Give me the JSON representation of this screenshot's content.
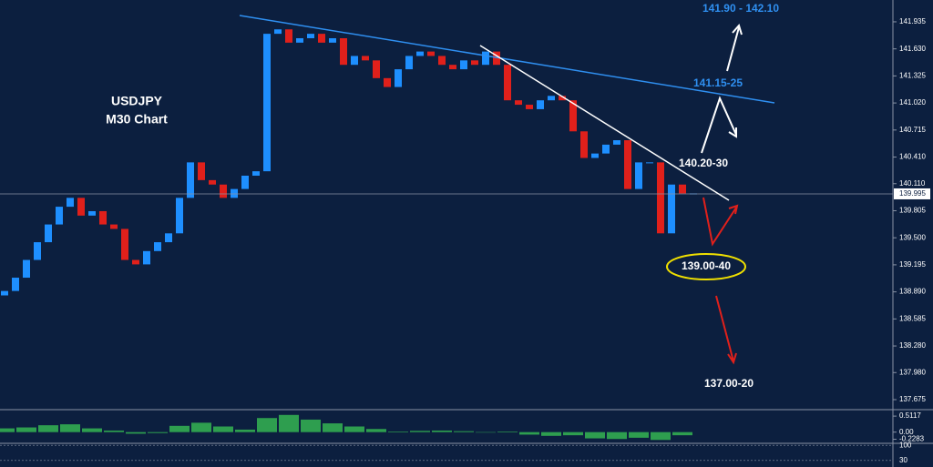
{
  "chart_data": {
    "type": "candlestick",
    "title": "USDJPY",
    "subtitle": "M30 Chart",
    "up_color": "#1e8fff",
    "down_color": "#e0201b",
    "open": [
      138.85,
      138.9,
      139.05,
      139.25,
      139.45,
      139.65,
      139.85,
      139.95,
      139.75,
      139.8,
      139.65,
      139.6,
      139.25,
      139.2,
      139.35,
      139.45,
      139.55,
      139.95,
      140.35,
      140.15,
      140.1,
      139.95,
      140.05,
      140.2,
      140.25,
      141.8,
      141.85,
      141.7,
      141.75,
      141.8,
      141.7,
      141.75,
      141.45,
      141.55,
      141.5,
      141.3,
      141.2,
      141.4,
      141.55,
      141.6,
      141.55,
      141.45,
      141.4,
      141.5,
      141.45,
      141.6,
      141.45,
      141.05,
      141,
      140.95,
      141.05,
      141.1,
      141.05,
      140.7,
      140.4,
      140.45,
      140.55,
      140.6,
      140.05,
      140.35,
      140.35,
      139.55,
      140.1,
      140
    ],
    "close": [
      138.9,
      139.05,
      139.25,
      139.45,
      139.65,
      139.85,
      139.95,
      139.75,
      139.8,
      139.65,
      139.6,
      139.25,
      139.2,
      139.35,
      139.45,
      139.55,
      139.95,
      140.35,
      140.15,
      140.1,
      139.95,
      140.05,
      140.2,
      140.25,
      141.8,
      141.85,
      141.7,
      141.75,
      141.8,
      141.7,
      141.75,
      141.45,
      141.55,
      141.5,
      141.3,
      141.2,
      141.4,
      141.55,
      141.6,
      141.55,
      141.45,
      141.4,
      141.5,
      141.45,
      141.6,
      141.45,
      141.05,
      141,
      140.95,
      141.05,
      141.1,
      141.05,
      140.7,
      140.4,
      140.45,
      140.55,
      140.6,
      140.05,
      140.35,
      140.35,
      139.55,
      140.1,
      140,
      140
    ],
    "ylim": [
      137.562,
      142.181
    ],
    "yticks": [
      141.935,
      {
        "value": 141.63,
        "label": "141.630"
      },
      141.325,
      {
        "value": 141.02,
        "label": "141.020"
      },
      140.715,
      {
        "value": 140.41,
        "label": "140.410"
      },
      {
        "value": 140.11,
        "label": "140.110"
      },
      139.805,
      {
        "value": 139.5,
        "label": "139.500"
      },
      139.195,
      {
        "value": 138.89,
        "label": "138.890"
      },
      138.585,
      {
        "value": 138.28,
        "label": "138.280"
      },
      {
        "value": 137.98,
        "label": "137.980"
      },
      137.675
    ],
    "current_price": 139.995,
    "annotations": [
      "141.90 - 142.10",
      "141.15-25",
      "140.20-30",
      "139.00-40",
      "137.00-20"
    ],
    "macd": {
      "color": "#2e9e4f",
      "ylim": [
        -0.3,
        0.66
      ],
      "yticks": [
        0.5117,
        {
          "value": 0,
          "label": "0.00"
        },
        -0.2283
      ],
      "values": [
        0.12,
        0.15,
        0.22,
        0.25,
        0.12,
        0.05,
        -0.05,
        -0.03,
        0.2,
        0.3,
        0.18,
        0.08,
        0.45,
        0.55,
        0.4,
        0.28,
        0.18,
        0.1,
        0.02,
        0.04,
        0.05,
        0.03,
        0,
        0.02,
        -0.08,
        -0.12,
        -0.1,
        -0.2,
        -0.22,
        -0.18,
        -0.25,
        -0.1
      ]
    },
    "rsi": {
      "ylim": [
        0,
        105
      ],
      "yticks": [
        100,
        30
      ]
    }
  }
}
